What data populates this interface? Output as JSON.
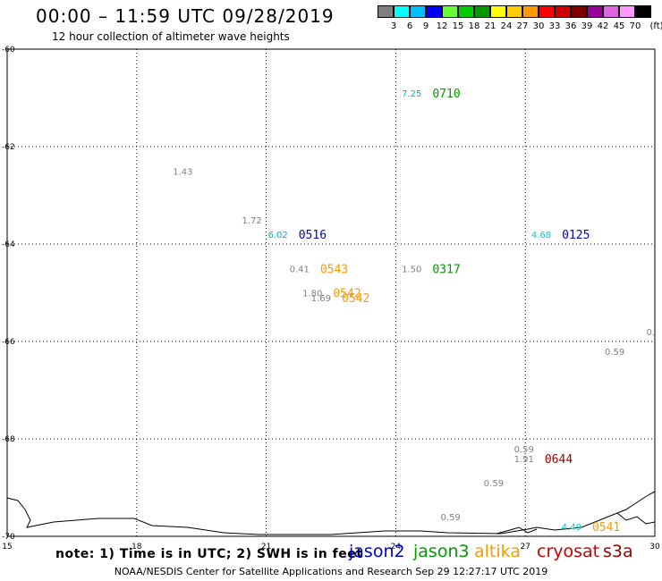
{
  "title": "00:00 – 11:59 UTC 09/28/2019",
  "subtitle": "12 hour collection of altimeter wave heights",
  "legend": {
    "unit": "(ft)",
    "colors": [
      "#808080",
      "#00ffff",
      "#00bfff",
      "#0000ff",
      "#66ff33",
      "#00cc00",
      "#009900",
      "#ffff00",
      "#ffcc00",
      "#ff9900",
      "#ff0000",
      "#cc0000",
      "#800000",
      "#990099",
      "#e066e0",
      "#ff99ff",
      "#000000"
    ],
    "labels": [
      "3",
      "6",
      "9",
      "12",
      "15",
      "18",
      "21",
      "24",
      "27",
      "30",
      "33",
      "36",
      "39",
      "42",
      "45",
      "70"
    ]
  },
  "note": "note: 1) Time is in UTC; 2) SWH is in feet",
  "satellites": [
    {
      "name": "jason2",
      "color": "#0000cc"
    },
    {
      "name": "jason3",
      "color": "#009900"
    },
    {
      "name": "altika",
      "color": "#ff9900"
    },
    {
      "name": "cryosat",
      "color": "#cc0000"
    },
    {
      "name": "s3a",
      "color": "#990000"
    }
  ],
  "credit": "NOAA/NESDIS Center for Satellite Applications and Research   Sep 29 12:27:17 UTC 2019",
  "chart_data": {
    "type": "scatter",
    "x_ticks": [
      "15",
      "18",
      "21",
      "24",
      "27",
      "30"
    ],
    "y_ticks": [
      "-60",
      "-62",
      "-64",
      "-66",
      "-68",
      "-70"
    ],
    "xlim": [
      15,
      30
    ],
    "ylim": [
      -70,
      -60
    ],
    "grid": true,
    "points": [
      {
        "x": 24.6,
        "y": -60.9,
        "swh": "7.25",
        "time": "0710",
        "color": "#009900",
        "swh_color": "#00aacc"
      },
      {
        "x": 19.3,
        "y": -62.5,
        "swh": "1.43",
        "time": "",
        "color": "#808080",
        "swh_color": "#808080"
      },
      {
        "x": 20.9,
        "y": -63.5,
        "swh": "1.72",
        "time": "",
        "color": "#808080",
        "swh_color": "#808080"
      },
      {
        "x": 21.5,
        "y": -63.8,
        "swh": "6.02",
        "time": "0516",
        "color": "#0000cc",
        "swh_color": "#00aacc"
      },
      {
        "x": 27.6,
        "y": -63.8,
        "swh": "4.68",
        "time": "0125",
        "color": "#0000cc",
        "swh_color": "#00cccc"
      },
      {
        "x": 22.0,
        "y": -64.5,
        "swh": "0.41",
        "time": "0543",
        "color": "#ff9900",
        "swh_color": "#808080"
      },
      {
        "x": 24.6,
        "y": -64.5,
        "swh": "1.50",
        "time": "0317",
        "color": "#009900",
        "swh_color": "#808080"
      },
      {
        "x": 22.3,
        "y": -65.0,
        "swh": "1.80",
        "time": "0542",
        "color": "#ff9900",
        "swh_color": "#808080"
      },
      {
        "x": 22.5,
        "y": -65.1,
        "swh": "1.69",
        "time": "0542",
        "color": "#ff9900",
        "swh_color": "#808080"
      },
      {
        "x": 30.0,
        "y": -65.8,
        "swh": "0.",
        "time": "",
        "color": "#808080",
        "swh_color": "#808080"
      },
      {
        "x": 29.3,
        "y": -66.2,
        "swh": "0.59",
        "time": "",
        "color": "#808080",
        "swh_color": "#808080"
      },
      {
        "x": 27.2,
        "y": -68.2,
        "swh": "0.59",
        "time": "",
        "color": "#808080",
        "swh_color": "#808080"
      },
      {
        "x": 27.2,
        "y": -68.4,
        "swh": "1.91",
        "time": "0644",
        "color": "#990000",
        "swh_color": "#808080"
      },
      {
        "x": 26.5,
        "y": -68.9,
        "swh": "0.59",
        "time": "",
        "color": "#808080",
        "swh_color": "#808080"
      },
      {
        "x": 25.5,
        "y": -69.6,
        "swh": "0.59",
        "time": "",
        "color": "#808080",
        "swh_color": "#808080"
      },
      {
        "x": 28.3,
        "y": -69.8,
        "swh": "4.49",
        "time": "0541",
        "color": "#ff9900",
        "swh_color": "#00cccc"
      }
    ]
  }
}
